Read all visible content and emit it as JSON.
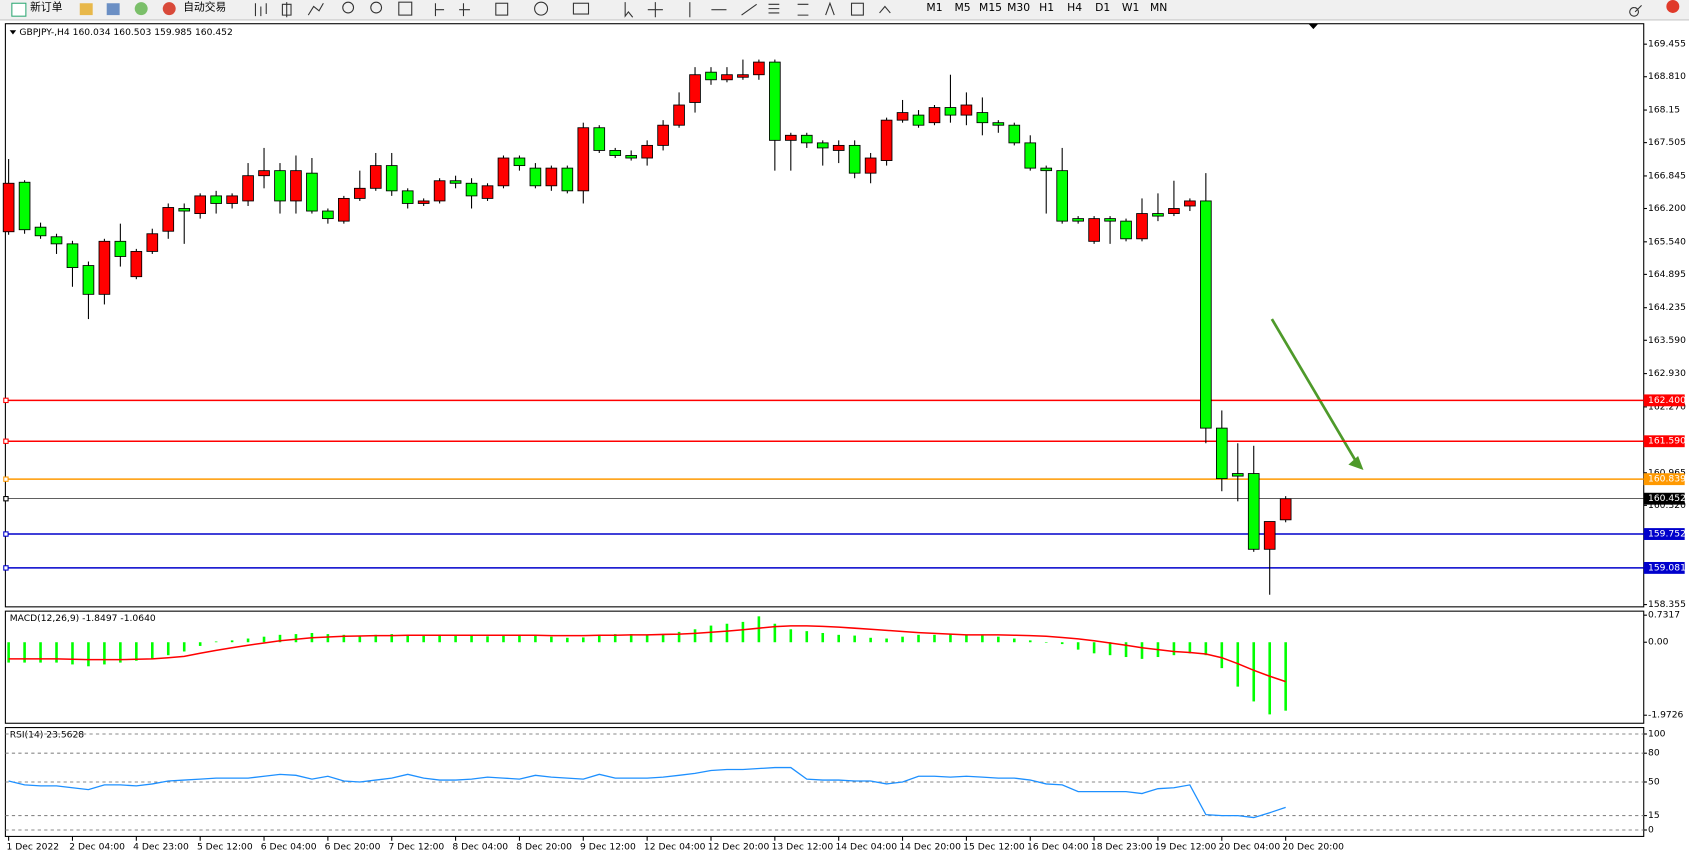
{
  "toolbar": {
    "new_order": "新订单",
    "auto_trade": "自动交易",
    "timeframes": [
      "M1",
      "M5",
      "M15",
      "M30",
      "H1",
      "H4",
      "D1",
      "W1",
      "MN"
    ]
  },
  "chart_data": [
    {
      "type": "candlestick",
      "title": "GBPJPY-,H4  160.034 160.503 159.985 160.452",
      "up_color": "#ff0000",
      "down_color": "#00ff00",
      "open": [
        165.74,
        166.72,
        165.83,
        165.64,
        165.5,
        165.07,
        164.5,
        165.55,
        164.85,
        165.35,
        165.75,
        166.2,
        166.1,
        166.45,
        166.3,
        166.35,
        166.85,
        166.95,
        166.35,
        166.9,
        166.15,
        165.95,
        166.4,
        166.6,
        167.05,
        166.55,
        166.3,
        166.35,
        166.75,
        166.7,
        166.4,
        166.65,
        167.2,
        167.0,
        166.65,
        167.0,
        166.55,
        167.8,
        167.35,
        167.25,
        167.2,
        167.45,
        167.85,
        168.3,
        168.9,
        168.75,
        168.8,
        168.85,
        169.1,
        167.55,
        167.65,
        167.5,
        167.35,
        167.45,
        166.9,
        167.15,
        167.95,
        168.05,
        167.9,
        168.2,
        168.05,
        168.1,
        167.9,
        167.85,
        167.5,
        167.0,
        166.95,
        166.0,
        165.55,
        166.0,
        165.95,
        165.6,
        166.1,
        166.1,
        166.25,
        166.35,
        161.85,
        160.95,
        160.95,
        159.45,
        160.034
      ],
      "high": [
        167.18,
        166.76,
        165.92,
        165.7,
        165.56,
        165.15,
        165.6,
        165.9,
        165.4,
        165.8,
        166.3,
        166.3,
        166.5,
        166.55,
        166.5,
        167.1,
        167.4,
        167.1,
        167.25,
        167.2,
        166.2,
        166.45,
        166.95,
        167.3,
        167.3,
        166.6,
        166.4,
        166.8,
        166.85,
        166.8,
        166.7,
        167.25,
        167.25,
        167.1,
        167.05,
        167.05,
        167.9,
        167.85,
        167.4,
        167.35,
        167.55,
        167.95,
        168.5,
        169.0,
        169.0,
        169.0,
        169.15,
        169.15,
        169.15,
        167.7,
        167.7,
        167.55,
        167.55,
        167.55,
        167.3,
        168.0,
        168.35,
        168.15,
        168.25,
        168.85,
        168.5,
        168.4,
        167.95,
        167.9,
        167.65,
        167.05,
        167.4,
        166.05,
        166.05,
        166.05,
        166.0,
        166.4,
        166.5,
        166.75,
        166.4,
        166.9,
        162.2,
        161.55,
        161.5,
        160.0,
        160.503
      ],
      "low": [
        165.68,
        165.7,
        165.6,
        165.3,
        164.65,
        164.01,
        164.3,
        165.05,
        164.8,
        165.3,
        165.6,
        165.5,
        166.0,
        166.1,
        166.2,
        166.25,
        166.6,
        166.1,
        166.1,
        166.1,
        165.9,
        165.9,
        166.35,
        166.55,
        166.45,
        166.2,
        166.25,
        166.3,
        166.6,
        166.2,
        166.35,
        166.6,
        166.95,
        166.6,
        166.55,
        166.5,
        166.3,
        167.3,
        167.2,
        167.15,
        167.05,
        167.35,
        167.8,
        168.1,
        168.65,
        168.7,
        168.75,
        168.75,
        166.95,
        166.95,
        167.4,
        167.05,
        167.1,
        166.8,
        166.7,
        167.05,
        167.9,
        167.8,
        167.85,
        167.9,
        167.85,
        167.65,
        167.7,
        167.45,
        166.95,
        166.1,
        165.9,
        165.9,
        165.5,
        165.5,
        165.55,
        165.55,
        165.95,
        166.05,
        166.15,
        161.55,
        160.6,
        160.4,
        159.4,
        158.55,
        159.985
      ],
      "close": [
        166.7,
        165.78,
        165.66,
        165.5,
        165.03,
        164.5,
        165.55,
        165.25,
        165.35,
        165.7,
        166.22,
        166.15,
        166.45,
        166.3,
        166.45,
        166.85,
        166.95,
        166.35,
        166.95,
        166.15,
        166.0,
        166.4,
        166.6,
        167.05,
        166.55,
        166.3,
        166.35,
        166.75,
        166.7,
        166.45,
        166.65,
        167.2,
        167.05,
        166.65,
        167.0,
        166.55,
        167.8,
        167.35,
        167.25,
        167.2,
        167.45,
        167.85,
        168.25,
        168.85,
        168.75,
        168.85,
        168.85,
        169.1,
        167.55,
        167.65,
        167.5,
        167.4,
        167.45,
        166.9,
        167.2,
        167.95,
        168.1,
        167.85,
        168.2,
        168.05,
        168.25,
        167.9,
        167.85,
        167.5,
        167.0,
        166.95,
        165.95,
        165.95,
        166.0,
        165.95,
        165.6,
        166.1,
        166.05,
        166.2,
        166.35,
        161.85,
        160.85,
        160.9,
        159.45,
        160.0,
        160.452
      ],
      "ylim": [
        158.31,
        169.86
      ],
      "yticks": [
        169.455,
        {
          "value": 168.81,
          "label": "168.810"
        },
        168.15,
        167.505,
        166.845,
        {
          "value": 166.2,
          "label": "166.200"
        },
        {
          "value": 165.54,
          "label": "165.540"
        },
        164.895,
        164.235,
        {
          "value": 163.59,
          "label": "163.590"
        },
        {
          "value": 162.93,
          "label": "162.930"
        },
        {
          "value": 162.27,
          "label": "162.270"
        },
        160.965,
        {
          "value": 160.32,
          "label": "160.320"
        },
        158.355
      ],
      "hlines": [
        {
          "value": 162.4,
          "label": "162.400",
          "color": "#ff0000"
        },
        {
          "value": 161.59,
          "label": "161.590",
          "color": "#ff0000"
        },
        {
          "value": 160.839,
          "label": "160.839",
          "color": "#ff9900"
        },
        {
          "value": 160.452,
          "label": "160.452",
          "color": "#000000"
        },
        {
          "value": 159.752,
          "label": "159.752",
          "color": "#0000cc"
        },
        {
          "value": 159.081,
          "label": "159.081",
          "color": "#0000cc"
        }
      ]
    },
    {
      "type": "macd",
      "title": "MACD(12,26,9) -1.8497 -1.0640",
      "histogram": {
        "color": "#00ff00",
        "values": [
          -0.55,
          -0.55,
          -0.55,
          -0.55,
          -0.6,
          -0.65,
          -0.6,
          -0.55,
          -0.5,
          -0.45,
          -0.35,
          -0.25,
          -0.1,
          0.02,
          0.05,
          0.1,
          0.15,
          0.2,
          0.22,
          0.25,
          0.22,
          0.2,
          0.18,
          0.2,
          0.22,
          0.2,
          0.18,
          0.18,
          0.18,
          0.17,
          0.16,
          0.18,
          0.2,
          0.18,
          0.15,
          0.12,
          0.13,
          0.2,
          0.22,
          0.22,
          0.2,
          0.22,
          0.28,
          0.35,
          0.45,
          0.5,
          0.55,
          0.7,
          0.5,
          0.35,
          0.3,
          0.25,
          0.2,
          0.18,
          0.12,
          0.1,
          0.15,
          0.2,
          0.2,
          0.22,
          0.2,
          0.2,
          0.15,
          0.1,
          0.05,
          0.0,
          -0.05,
          -0.2,
          -0.3,
          -0.35,
          -0.4,
          -0.45,
          -0.4,
          -0.35,
          -0.3,
          -0.35,
          -0.7,
          -1.2,
          -1.6,
          -1.95,
          -1.8497
        ]
      },
      "signal": {
        "color": "#ff0000",
        "values": [
          -0.45,
          -0.45,
          -0.45,
          -0.45,
          -0.46,
          -0.47,
          -0.47,
          -0.47,
          -0.46,
          -0.45,
          -0.42,
          -0.38,
          -0.3,
          -0.22,
          -0.15,
          -0.08,
          -0.02,
          0.04,
          0.08,
          0.12,
          0.14,
          0.16,
          0.17,
          0.18,
          0.18,
          0.19,
          0.19,
          0.19,
          0.19,
          0.19,
          0.19,
          0.19,
          0.19,
          0.19,
          0.18,
          0.18,
          0.18,
          0.19,
          0.19,
          0.2,
          0.2,
          0.21,
          0.22,
          0.24,
          0.27,
          0.3,
          0.34,
          0.38,
          0.42,
          0.44,
          0.44,
          0.43,
          0.41,
          0.38,
          0.35,
          0.32,
          0.29,
          0.26,
          0.24,
          0.22,
          0.2,
          0.2,
          0.2,
          0.19,
          0.18,
          0.16,
          0.13,
          0.09,
          0.04,
          -0.02,
          -0.08,
          -0.15,
          -0.2,
          -0.25,
          -0.28,
          -0.32,
          -0.42,
          -0.58,
          -0.76,
          -0.92,
          -1.064
        ]
      },
      "ylim": [
        -2.19,
        0.84
      ],
      "yticks": [
        0.7317,
        {
          "value": 0,
          "label": "0.00"
        },
        -1.9726
      ]
    },
    {
      "type": "line",
      "title": "RSI(14) 23.5628",
      "color": "#1e90ff",
      "values": [
        51,
        47,
        46,
        46,
        44,
        42,
        47,
        47,
        46,
        48,
        51,
        52,
        53,
        54,
        54,
        54,
        56,
        58,
        57,
        53,
        56,
        51,
        50,
        52,
        54,
        58,
        54,
        52,
        52,
        53,
        55,
        54,
        53,
        57,
        55,
        54,
        53,
        58,
        54,
        54,
        54,
        55,
        57,
        59,
        62,
        63,
        63,
        64,
        65,
        65,
        53,
        52,
        52,
        51,
        51,
        48,
        50,
        56,
        56,
        55,
        56,
        55,
        54,
        54,
        52,
        48,
        47,
        40,
        40,
        40,
        40,
        38,
        43,
        44,
        47,
        16,
        15,
        15,
        13,
        18,
        23.5628
      ],
      "ylim": [
        -6.7,
        106.7
      ],
      "yticks": [
        100,
        80,
        50,
        15,
        0
      ],
      "grid": "dashed",
      "categories": [
        "1 Dec 2022",
        null,
        null,
        null,
        "2 Dec 04:00",
        null,
        null,
        null,
        "4 Dec 23:00",
        null,
        null,
        null,
        "5 Dec 12:00",
        null,
        null,
        null,
        "6 Dec 04:00",
        null,
        null,
        null,
        "6 Dec 20:00",
        null,
        null,
        null,
        "7 Dec 12:00",
        null,
        null,
        null,
        "8 Dec 04:00",
        null,
        null,
        null,
        "8 Dec 20:00",
        null,
        null,
        null,
        "9 Dec 12:00",
        null,
        null,
        null,
        "12 Dec 04:00",
        null,
        null,
        null,
        "12 Dec 20:00",
        null,
        null,
        null,
        "13 Dec 12:00",
        null,
        null,
        null,
        "14 Dec 04:00",
        null,
        null,
        null,
        "14 Dec 20:00",
        null,
        null,
        null,
        "15 Dec 12:00",
        null,
        null,
        null,
        "16 Dec 04:00",
        null,
        null,
        null,
        "18 Dec 23:00",
        null,
        null,
        null,
        "19 Dec 12:00",
        null,
        null,
        null,
        "20 Dec 04:00",
        null,
        null,
        null,
        "20 Dec 20:00"
      ]
    }
  ]
}
